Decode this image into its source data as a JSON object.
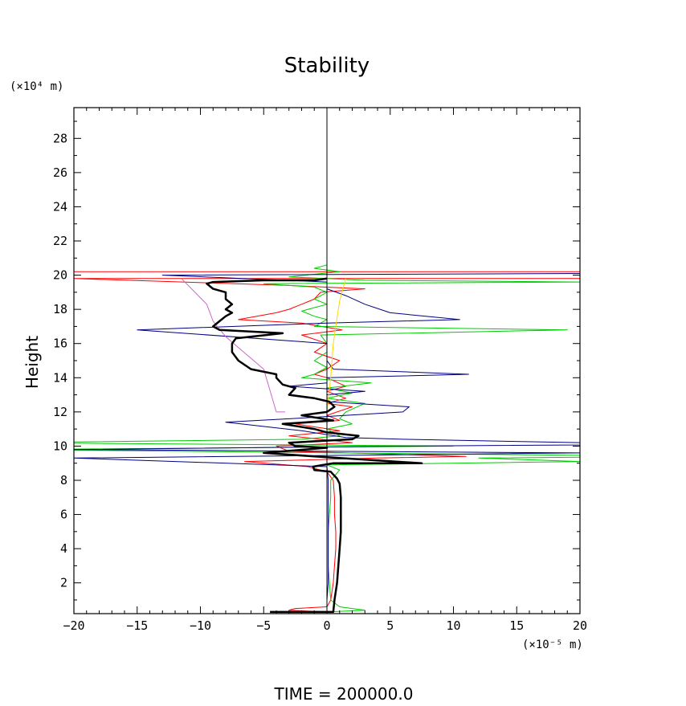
{
  "chart_data": {
    "type": "line",
    "title": "Stability",
    "ylabel": "Height",
    "xlabel": "",
    "y_unit_label": "(×10⁴ m)",
    "x_unit_label": "(×10⁻⁵ m)",
    "footer": "TIME  =  200000.0",
    "xlim": [
      -20,
      20
    ],
    "ylim": [
      0.2,
      29.8
    ],
    "x_ticks": [
      -20,
      -15,
      -10,
      -5,
      0,
      5,
      10,
      15,
      20
    ],
    "x_tick_labels": [
      "−20",
      "−15",
      "−10",
      "−5",
      "0",
      "5",
      "10",
      "15",
      "20"
    ],
    "y_ticks": [
      2,
      4,
      6,
      8,
      10,
      12,
      14,
      16,
      18,
      20,
      22,
      24,
      26,
      28
    ],
    "y_tick_labels": [
      "2",
      "4",
      "6",
      "8",
      "10",
      "12",
      "14",
      "16",
      "18",
      "20",
      "22",
      "24",
      "26",
      "28"
    ],
    "grid": false,
    "legend": "none",
    "series": [
      {
        "color": "#000000",
        "width": 2.5,
        "points": [
          [
            -4.5,
            0.3
          ],
          [
            0.5,
            0.3
          ],
          [
            0.6,
            1
          ],
          [
            0.8,
            2
          ],
          [
            0.9,
            3
          ],
          [
            1,
            4
          ],
          [
            1.1,
            5
          ],
          [
            1.1,
            6
          ],
          [
            1.1,
            7
          ],
          [
            1,
            7.8
          ],
          [
            0.8,
            8.1
          ],
          [
            0.3,
            8.5
          ],
          [
            -1,
            8.6
          ],
          [
            -1.1,
            8.8
          ],
          [
            0.5,
            9
          ],
          [
            7.5,
            9
          ],
          [
            1,
            9.3
          ],
          [
            -1,
            9.4
          ],
          [
            -5,
            9.6
          ],
          [
            0,
            9.9
          ],
          [
            -2.5,
            10
          ],
          [
            -3,
            10.2
          ],
          [
            2,
            10.4
          ],
          [
            2.5,
            10.6
          ],
          [
            0,
            10.8
          ],
          [
            -1,
            11
          ],
          [
            -3.5,
            11.3
          ],
          [
            0.5,
            11.5
          ],
          [
            -2,
            11.8
          ],
          [
            0,
            12
          ],
          [
            0.6,
            12.3
          ],
          [
            0.2,
            12.6
          ],
          [
            -1,
            12.8
          ],
          [
            -3,
            13
          ],
          [
            -2.5,
            13.4
          ],
          [
            -3.5,
            13.6
          ],
          [
            -4,
            14
          ],
          [
            -4,
            14.2
          ],
          [
            -6,
            14.5
          ],
          [
            -7,
            15
          ],
          [
            -7.5,
            15.5
          ],
          [
            -7.5,
            16
          ],
          [
            -7.2,
            16.3
          ],
          [
            -3.5,
            16.6
          ],
          [
            -8.5,
            16.8
          ],
          [
            -9,
            17
          ],
          [
            -8.5,
            17.3
          ],
          [
            -8,
            17.6
          ],
          [
            -7.5,
            17.8
          ],
          [
            -8,
            18
          ],
          [
            -7.5,
            18.3
          ],
          [
            -8,
            18.6
          ],
          [
            -8,
            19
          ],
          [
            -9,
            19.2
          ],
          [
            -9.5,
            19.5
          ],
          [
            -9,
            19.6
          ],
          [
            -5,
            19.7
          ],
          [
            -1,
            19.7
          ],
          [
            0,
            19.8
          ]
        ]
      },
      {
        "color": "#ff0000",
        "width": 1,
        "points": [
          [
            0,
            0.3
          ],
          [
            -3,
            0.4
          ],
          [
            -2.5,
            0.5
          ],
          [
            0,
            0.6
          ],
          [
            0.3,
            1
          ],
          [
            0.5,
            2
          ],
          [
            0.6,
            3
          ],
          [
            0.7,
            4
          ],
          [
            0.7,
            5
          ],
          [
            0.6,
            6
          ],
          [
            0.6,
            7
          ],
          [
            0.5,
            8
          ],
          [
            0,
            8.5
          ],
          [
            -1.5,
            8.8
          ],
          [
            -6.5,
            9.1
          ],
          [
            4,
            9.3
          ],
          [
            11,
            9.4
          ],
          [
            -3,
            9.7
          ],
          [
            -4,
            10
          ],
          [
            2,
            10.2
          ],
          [
            -3,
            10.6
          ],
          [
            1,
            10.9
          ],
          [
            -2.5,
            11.3
          ],
          [
            1,
            11.5
          ],
          [
            0,
            11.8
          ],
          [
            2,
            12.3
          ],
          [
            0,
            12.5
          ],
          [
            1.5,
            12.8
          ],
          [
            0,
            13.2
          ],
          [
            1.5,
            13.5
          ],
          [
            0,
            14
          ],
          [
            -1,
            14.2
          ],
          [
            0,
            14.5
          ],
          [
            1,
            15
          ],
          [
            -1,
            15.5
          ],
          [
            0,
            16
          ],
          [
            -2,
            16.5
          ],
          [
            1.2,
            16.8
          ],
          [
            -2,
            17.2
          ],
          [
            -7,
            17.4
          ],
          [
            -4,
            17.8
          ],
          [
            -3,
            18
          ],
          [
            -2,
            18.3
          ],
          [
            -1,
            18.6
          ],
          [
            -0.5,
            19
          ],
          [
            3,
            19.2
          ],
          [
            -3,
            19.4
          ],
          [
            -20,
            19.8
          ],
          [
            20,
            19.8
          ],
          [
            20,
            20.2
          ],
          [
            -20,
            20.2
          ]
        ]
      },
      {
        "color": "#00cc00",
        "width": 1,
        "points": [
          [
            0,
            0.3
          ],
          [
            3,
            0.4
          ],
          [
            1,
            0.6
          ],
          [
            0.3,
            1
          ],
          [
            0.2,
            2
          ],
          [
            0.1,
            3
          ],
          [
            0.1,
            4
          ],
          [
            0.1,
            5
          ],
          [
            0.2,
            6
          ],
          [
            0.3,
            7
          ],
          [
            0.3,
            8
          ],
          [
            1,
            8.6
          ],
          [
            0,
            8.9
          ],
          [
            20,
            9.1
          ],
          [
            12,
            9.3
          ],
          [
            28,
            9.4
          ],
          [
            -25,
            9.8
          ],
          [
            10,
            10
          ],
          [
            -25,
            10.2
          ],
          [
            -2,
            10.4
          ],
          [
            1,
            10.6
          ],
          [
            0,
            11
          ],
          [
            2,
            11.3
          ],
          [
            1,
            11.6
          ],
          [
            1.5,
            12
          ],
          [
            3,
            12.5
          ],
          [
            0,
            12.8
          ],
          [
            2,
            13.1
          ],
          [
            0,
            13.4
          ],
          [
            3.5,
            13.7
          ],
          [
            -2,
            14
          ],
          [
            -1,
            14.2
          ],
          [
            0,
            14.6
          ],
          [
            -1,
            15
          ],
          [
            0,
            15.5
          ],
          [
            0,
            16
          ],
          [
            -0.5,
            16.5
          ],
          [
            19,
            16.8
          ],
          [
            -1,
            17
          ],
          [
            0,
            17.4
          ],
          [
            -1,
            17.6
          ],
          [
            -2,
            17.9
          ],
          [
            0,
            18.3
          ],
          [
            -1,
            18.6
          ],
          [
            0,
            19
          ],
          [
            -1,
            19.3
          ],
          [
            -5,
            19.5
          ],
          [
            20,
            19.6
          ],
          [
            3,
            19.7
          ],
          [
            -3,
            19.9
          ],
          [
            1,
            20.2
          ],
          [
            -1,
            20.4
          ],
          [
            0,
            20.6
          ]
        ]
      },
      {
        "color": "#000080",
        "width": 1,
        "points": [
          [
            0,
            0.3
          ],
          [
            0,
            1
          ],
          [
            0.1,
            2
          ],
          [
            0.1,
            3
          ],
          [
            0.1,
            4
          ],
          [
            0.1,
            5
          ],
          [
            0.1,
            6
          ],
          [
            0.1,
            7
          ],
          [
            0.1,
            8
          ],
          [
            0,
            8.8
          ],
          [
            -20,
            9.3
          ],
          [
            20,
            9.6
          ],
          [
            -20,
            9.8
          ],
          [
            6,
            10
          ],
          [
            27,
            10.1
          ],
          [
            6,
            10.4
          ],
          [
            1.5,
            10.5
          ],
          [
            -2,
            10.9
          ],
          [
            -8,
            11.4
          ],
          [
            -3,
            11.6
          ],
          [
            6,
            12
          ],
          [
            6.5,
            12.3
          ],
          [
            0,
            12.6
          ],
          [
            0,
            13
          ],
          [
            3,
            13.2
          ],
          [
            -3,
            13.5
          ],
          [
            0,
            13.7
          ],
          [
            0,
            14
          ],
          [
            11.2,
            14.2
          ],
          [
            0.5,
            14.5
          ],
          [
            0,
            15
          ],
          [
            0,
            15.5
          ],
          [
            0,
            16
          ],
          [
            -15,
            16.8
          ],
          [
            0,
            17.2
          ],
          [
            10.5,
            17.4
          ],
          [
            5,
            17.8
          ],
          [
            3,
            18.3
          ],
          [
            1.5,
            18.8
          ],
          [
            0,
            19.2
          ],
          [
            0,
            19.6
          ],
          [
            -13,
            20
          ],
          [
            20,
            20.1
          ]
        ]
      },
      {
        "color": "#cc66cc",
        "width": 1,
        "points": [
          [
            -11.5,
            19.8
          ],
          [
            -9.5,
            18.3
          ],
          [
            -9,
            17.3
          ],
          [
            -8,
            16.4
          ],
          [
            -5,
            14.5
          ],
          [
            -4,
            12
          ],
          [
            -3.3,
            12
          ]
        ]
      },
      {
        "color": "#ffd700",
        "width": 1,
        "points": [
          [
            0,
            0.3
          ],
          [
            0,
            2
          ],
          [
            0,
            4
          ],
          [
            0,
            6
          ],
          [
            0,
            8
          ],
          [
            0,
            10
          ],
          [
            0,
            12
          ],
          [
            0.3,
            14
          ],
          [
            0.5,
            16
          ],
          [
            0.8,
            17.5
          ],
          [
            1,
            18.5
          ],
          [
            1.3,
            19.3
          ],
          [
            1.5,
            19.8
          ]
        ]
      },
      {
        "color": "#000000",
        "width": 1,
        "points": [
          [
            0,
            0.2
          ],
          [
            0,
            29.8
          ]
        ]
      }
    ]
  }
}
